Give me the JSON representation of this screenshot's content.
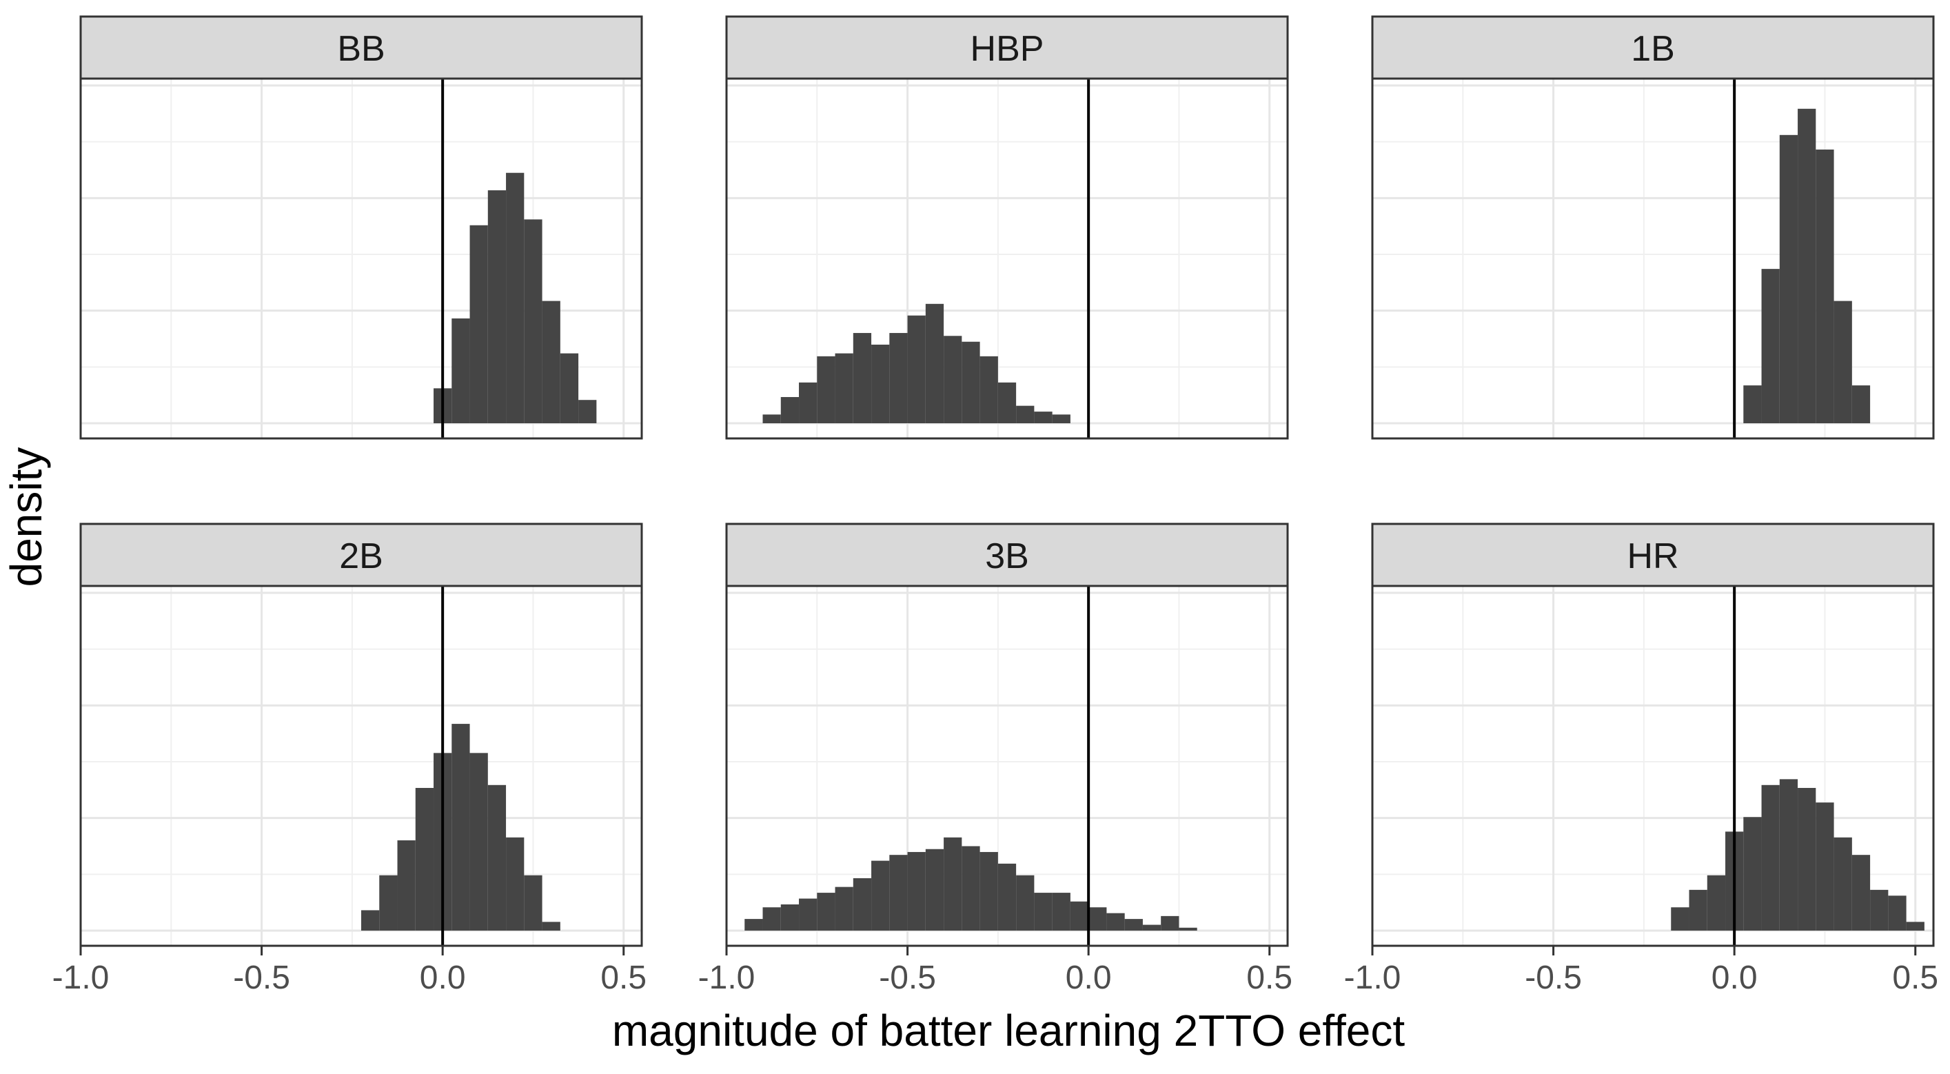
{
  "xlabel": "magnitude of batter learning 2TTO effect",
  "ylabel": "density",
  "chart_data": {
    "type": "bar",
    "xlim": [
      -1.0,
      0.55
    ],
    "x_ticks": [
      -1.0,
      -0.5,
      0.0,
      0.5
    ],
    "x_tick_labels": [
      "-1.0",
      "-0.5",
      "0.0",
      "0.5"
    ],
    "reference_line_x": 0.0,
    "grid": true,
    "layout": "2x3 facets",
    "bar_color": "#454545",
    "panels": [
      {
        "title": "BB",
        "bin_start": -0.025,
        "bin_width": 0.05,
        "ymax": 5.8,
        "values": [
          0.6,
          1.8,
          3.4,
          4.0,
          4.3,
          3.5,
          2.1,
          1.2,
          0.4
        ]
      },
      {
        "title": "HBP",
        "bin_start": -0.9,
        "bin_width": 0.05,
        "ymax": 5.8,
        "values": [
          0.15,
          0.45,
          0.7,
          1.15,
          1.2,
          1.55,
          1.35,
          1.55,
          1.85,
          2.05,
          1.5,
          1.4,
          1.15,
          0.7,
          0.3,
          0.2,
          0.15
        ]
      },
      {
        "title": "1B",
        "bin_start": 0.025,
        "bin_width": 0.05,
        "ymax": 5.8,
        "values": [
          0.65,
          2.65,
          4.95,
          5.4,
          4.7,
          2.1,
          0.65
        ]
      },
      {
        "title": "2B",
        "bin_start": -0.225,
        "bin_width": 0.05,
        "ymax": 5.8,
        "values": [
          0.35,
          0.95,
          1.55,
          2.45,
          3.05,
          3.55,
          3.05,
          2.5,
          1.6,
          0.95,
          0.15
        ]
      },
      {
        "title": "3B",
        "bin_start": -0.95,
        "bin_width": 0.05,
        "ymax": 5.8,
        "values": [
          0.2,
          0.4,
          0.45,
          0.55,
          0.65,
          0.75,
          0.9,
          1.2,
          1.3,
          1.35,
          1.4,
          1.6,
          1.45,
          1.35,
          1.15,
          0.95,
          0.65,
          0.65,
          0.5,
          0.4,
          0.3,
          0.2,
          0.1,
          0.25,
          0.05
        ]
      },
      {
        "title": "HR",
        "bin_start": -0.175,
        "bin_width": 0.05,
        "ymax": 5.8,
        "values": [
          0.4,
          0.7,
          0.95,
          1.7,
          1.95,
          2.5,
          2.6,
          2.45,
          2.2,
          1.6,
          1.3,
          0.7,
          0.6,
          0.15
        ]
      }
    ]
  }
}
